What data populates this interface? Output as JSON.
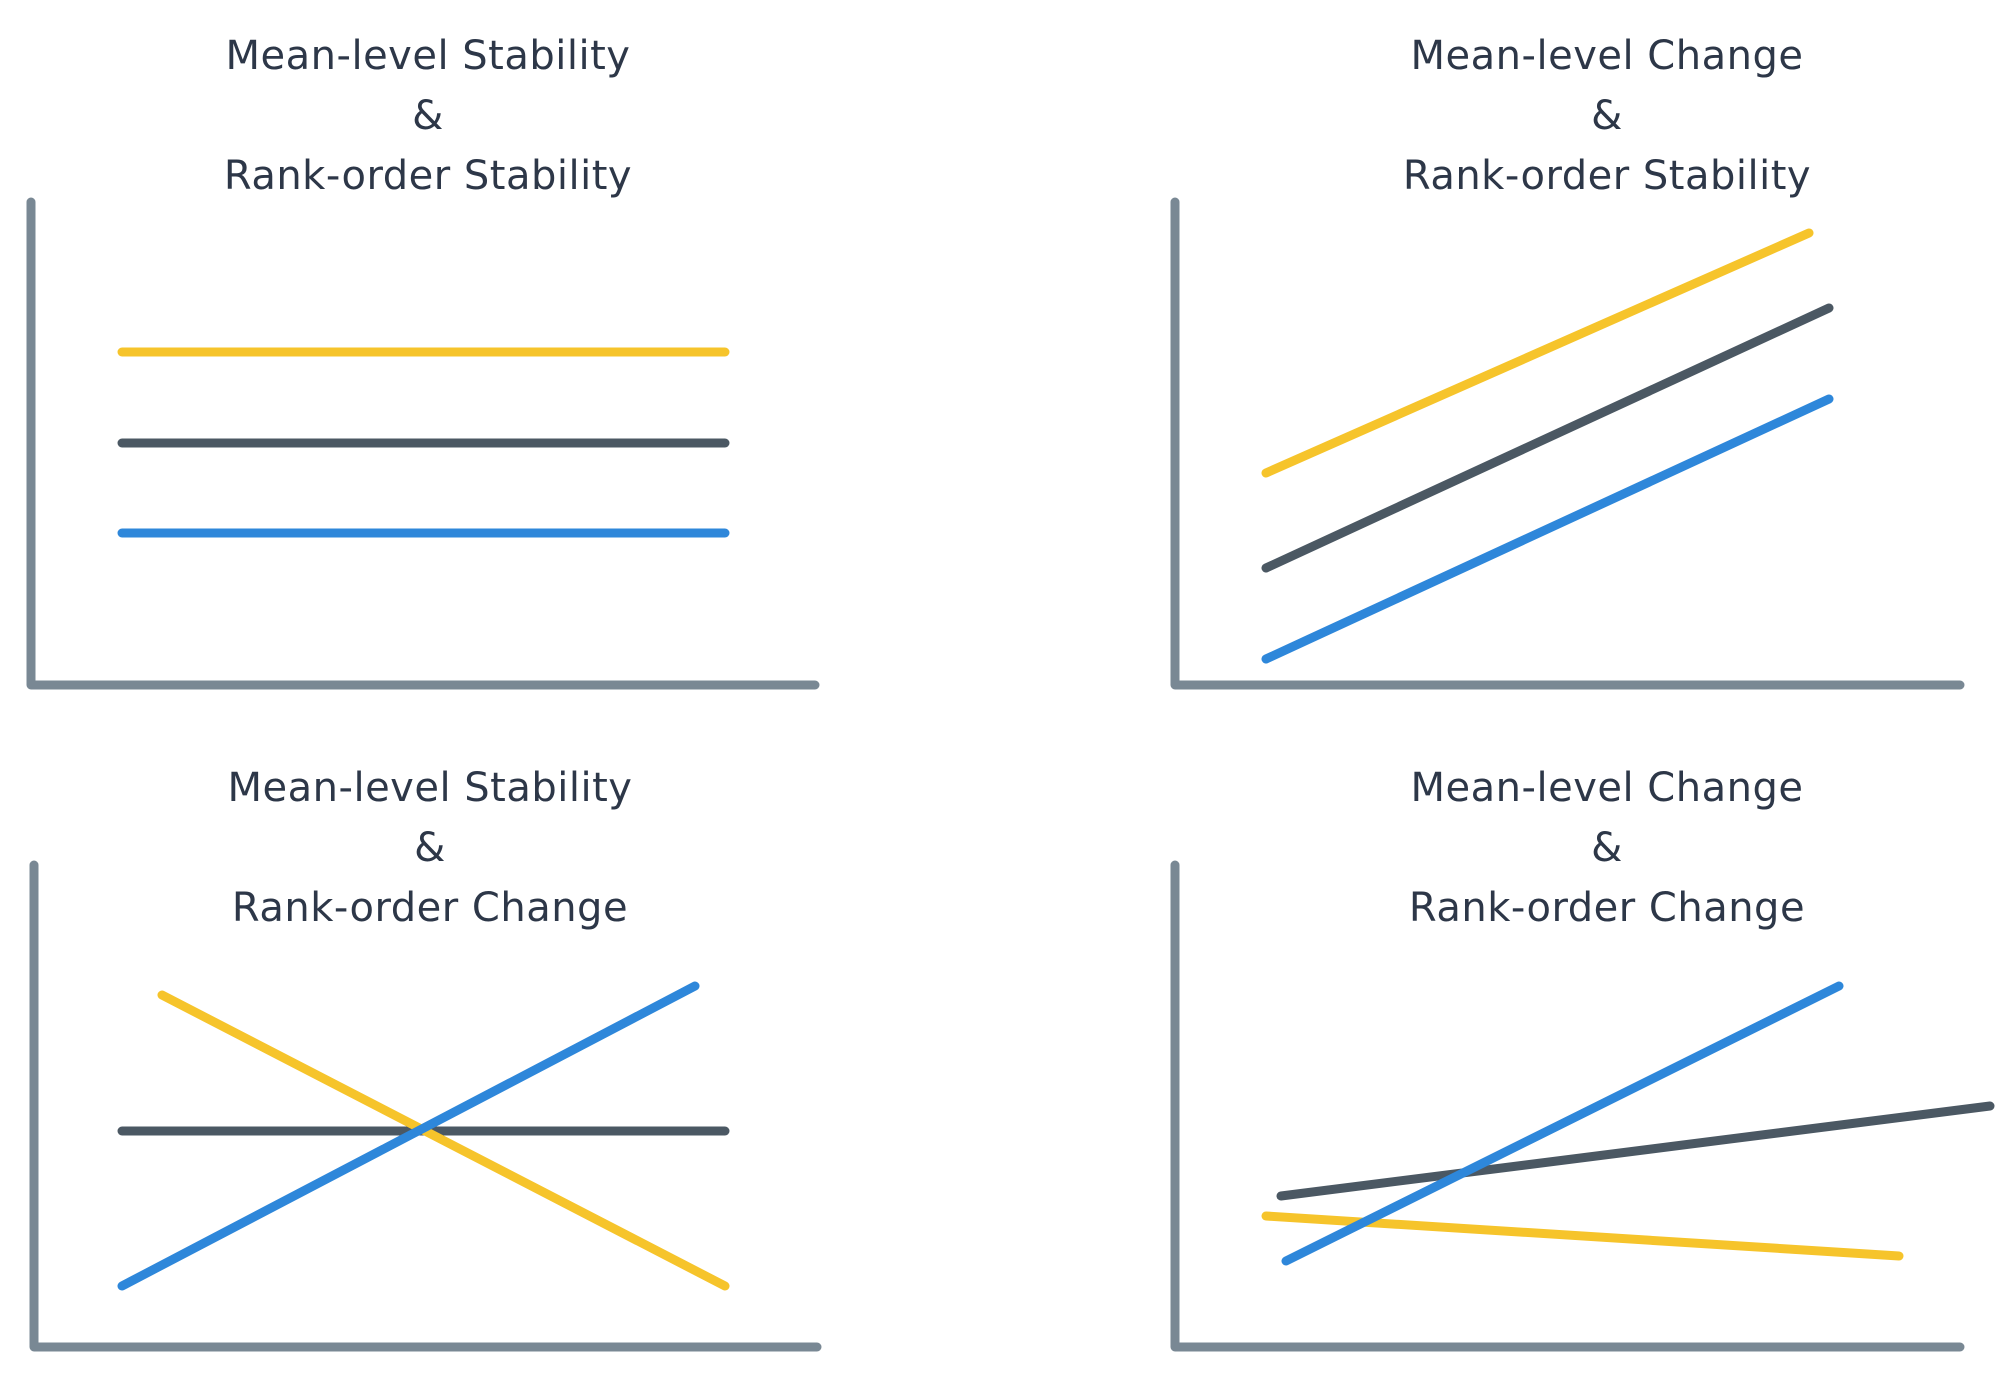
{
  "colors": {
    "axis": "#798894",
    "yellow": "#F6C42B",
    "dark": "#4B5863",
    "blue": "#2E87DA",
    "text": "#2d3748"
  },
  "panels": [
    {
      "title_line1": "Mean-level Stability",
      "title_amp": "&",
      "title_line2": "Rank-order Stability",
      "lines": [
        {
          "color": "yellow",
          "start": 0.69,
          "end": 0.69
        },
        {
          "color": "dark",
          "start": 0.5,
          "end": 0.5
        },
        {
          "color": "blue",
          "start": 0.31,
          "end": 0.31
        }
      ]
    },
    {
      "title_line1": "Mean-level Change",
      "title_amp": "&",
      "title_line2": "Rank-order Stability",
      "lines": [
        {
          "color": "yellow",
          "start": 0.44,
          "end": 0.94
        },
        {
          "color": "dark",
          "start": 0.24,
          "end": 0.78
        },
        {
          "color": "blue",
          "start": 0.05,
          "end": 0.59
        }
      ]
    },
    {
      "title_line1": "Mean-level Stability",
      "title_amp": "&",
      "title_line2": "Rank-order Change",
      "lines": [
        {
          "color": "yellow",
          "start": 0.74,
          "end": 0.13
        },
        {
          "color": "dark",
          "start": 0.45,
          "end": 0.45
        },
        {
          "color": "blue",
          "start": 0.13,
          "end": 0.76
        }
      ]
    },
    {
      "title_line1": "Mean-level Change",
      "title_amp": "&",
      "title_line2": "Rank-order Change",
      "lines": [
        {
          "color": "yellow",
          "start": 0.27,
          "end": 0.19
        },
        {
          "color": "dark",
          "start": 0.31,
          "end": 0.5
        },
        {
          "color": "blue",
          "start": 0.18,
          "end": 0.76
        }
      ]
    }
  ]
}
